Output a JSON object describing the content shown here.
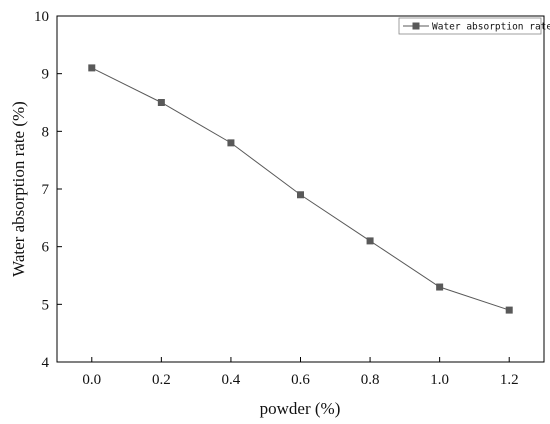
{
  "chart_data": {
    "type": "line",
    "title": "",
    "xlabel": "powder (%)",
    "ylabel": "Water absorption rate (%)",
    "xlim": [
      -0.1,
      1.3
    ],
    "ylim": [
      4,
      10
    ],
    "xticks": [
      "0.0",
      "0.2",
      "0.4",
      "0.6",
      "0.8",
      "1.0",
      "1.2"
    ],
    "xtick_values": [
      0.0,
      0.2,
      0.4,
      0.6,
      0.8,
      1.0,
      1.2
    ],
    "yticks": [
      "4",
      "5",
      "6",
      "7",
      "8",
      "9",
      "10"
    ],
    "ytick_values": [
      4,
      5,
      6,
      7,
      8,
      9,
      10
    ],
    "series": [
      {
        "name": "Water absorption rate",
        "x": [
          0.0,
          0.2,
          0.4,
          0.6,
          0.8,
          1.0,
          1.2
        ],
        "y": [
          9.1,
          8.5,
          7.8,
          6.9,
          6.1,
          5.3,
          4.9
        ],
        "marker": "square",
        "color": "#595959"
      }
    ],
    "legend_position": "top-right",
    "grid": false
  }
}
